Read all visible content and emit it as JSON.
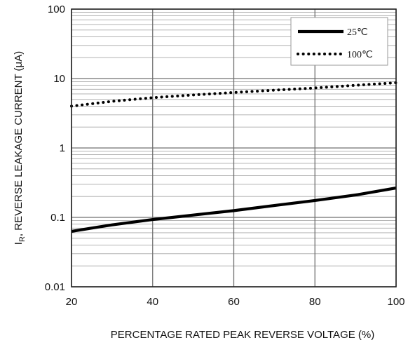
{
  "chart_data": {
    "type": "line",
    "xlabel": "PERCENTAGE RATED PEAK REVERSE VOLTAGE (%)",
    "ylabel": {
      "main": "I",
      "subscript": "R",
      "rest": ", REVERSE LEAKAGE CURRENT (μA)"
    },
    "xlim": [
      20,
      100
    ],
    "ylim": [
      0.01,
      100
    ],
    "yscale": "log",
    "grid": true,
    "legend_position": "top-right",
    "x_ticks": [
      20,
      40,
      60,
      80,
      100
    ],
    "x_tick_labels": [
      "20",
      "40",
      "60",
      "80",
      "100"
    ],
    "y_ticks": [
      0.01,
      0.1,
      1,
      10,
      100
    ],
    "y_tick_labels": [
      "0.01",
      "0.1",
      "1",
      "10",
      "100"
    ],
    "series": [
      {
        "name": "25℃",
        "style": "solid",
        "color": "#000000",
        "x": [
          20,
          30,
          40,
          50,
          60,
          70,
          80,
          90,
          100
        ],
        "y": [
          0.063,
          0.078,
          0.093,
          0.108,
          0.125,
          0.148,
          0.175,
          0.21,
          0.265
        ]
      },
      {
        "name": "100℃",
        "style": "dotted",
        "color": "#000000",
        "x": [
          20,
          30,
          40,
          50,
          60,
          70,
          80,
          90,
          100
        ],
        "y": [
          4.0,
          4.7,
          5.3,
          5.8,
          6.3,
          6.8,
          7.3,
          8.0,
          8.7
        ]
      }
    ]
  }
}
